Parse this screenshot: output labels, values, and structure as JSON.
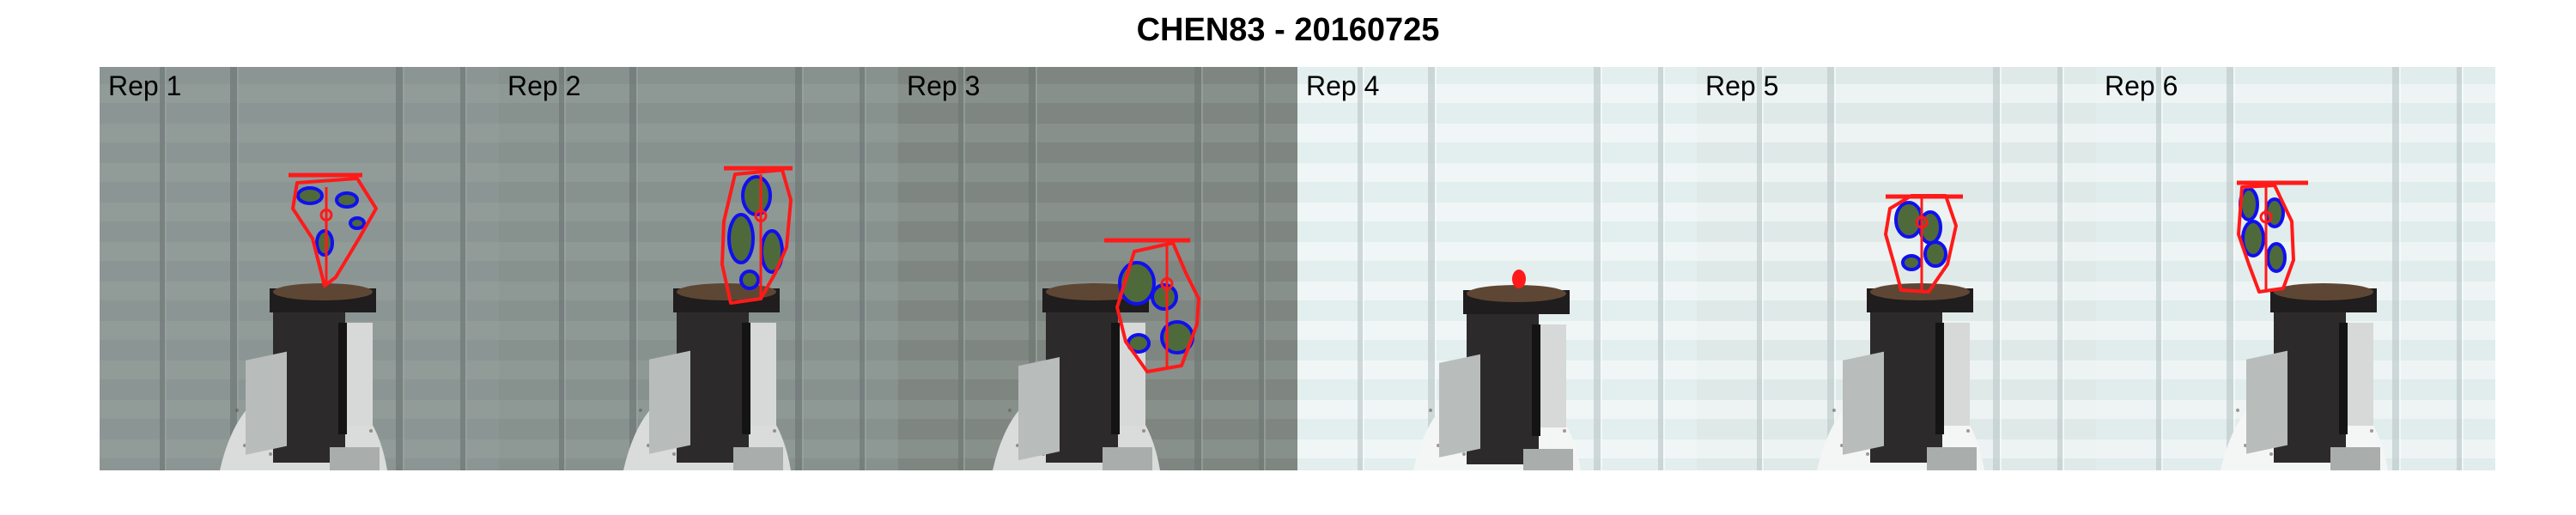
{
  "title": "CHEN83 - 20160725",
  "panels": [
    {
      "label": "Rep 1",
      "lighting": "dark",
      "bg": "#8b9694",
      "detection": "plant"
    },
    {
      "label": "Rep 2",
      "lighting": "dark",
      "bg": "#87928f",
      "detection": "plant"
    },
    {
      "label": "Rep 3",
      "lighting": "dark",
      "bg": "#7f8580",
      "detection": "plant"
    },
    {
      "label": "Rep 4",
      "lighting": "bright",
      "bg": "#e3eeee",
      "detection": "dot-only"
    },
    {
      "label": "Rep 5",
      "lighting": "bright",
      "bg": "#dfeae8",
      "detection": "plant"
    },
    {
      "label": "Rep 6",
      "lighting": "bright",
      "bg": "#e1ecec",
      "detection": "plant"
    }
  ],
  "colors": {
    "hull": "#ff1a1a",
    "outline": "#1010ee",
    "leaf_fill": "#4f6a3a",
    "pot": "#2c2a2a",
    "soil": "#5e4634"
  }
}
